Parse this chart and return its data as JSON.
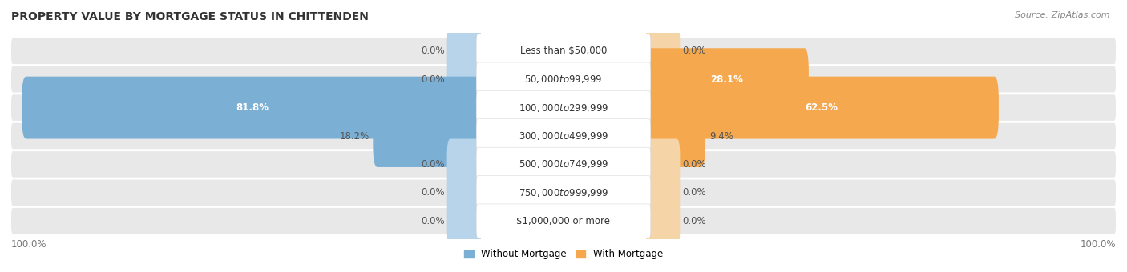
{
  "title": "PROPERTY VALUE BY MORTGAGE STATUS IN CHITTENDEN",
  "source": "Source: ZipAtlas.com",
  "categories": [
    "Less than $50,000",
    "$50,000 to $99,999",
    "$100,000 to $299,999",
    "$300,000 to $499,999",
    "$500,000 to $749,999",
    "$750,000 to $999,999",
    "$1,000,000 or more"
  ],
  "without_mortgage": [
    0.0,
    0.0,
    81.8,
    18.2,
    0.0,
    0.0,
    0.0
  ],
  "with_mortgage": [
    0.0,
    28.1,
    62.5,
    9.4,
    0.0,
    0.0,
    0.0
  ],
  "color_without": "#7bafd4",
  "color_with": "#f5a84e",
  "color_without_zero": "#b8d4eb",
  "color_with_zero": "#f5d4a8",
  "bar_row_bg": "#e8e8e8",
  "bar_row_bg_alt": "#f0f0f0",
  "max_val": 100.0,
  "title_fontsize": 10,
  "source_fontsize": 8,
  "label_fontsize": 8.5,
  "cat_fontsize": 8.5,
  "zero_stub": 5.0
}
